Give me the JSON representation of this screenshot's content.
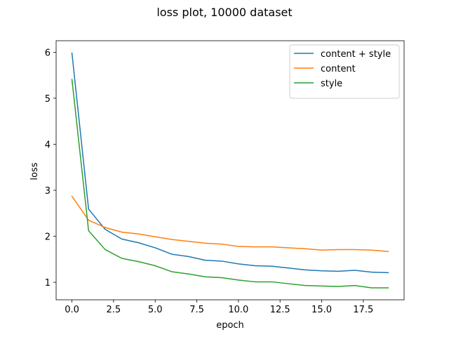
{
  "chart_data": {
    "type": "line",
    "title": "loss plot, 10000 dataset",
    "xlabel": "epoch",
    "ylabel": "loss",
    "xlim": [
      -0.95,
      19.95
    ],
    "ylim": [
      0.62,
      6.25
    ],
    "x_ticks": [
      0,
      2.5,
      5,
      7.5,
      10,
      12.5,
      15,
      17.5
    ],
    "x_tick_labels": [
      "0.0",
      "2.5",
      "5.0",
      "7.5",
      "10.0",
      "12.5",
      "15.0",
      "17.5"
    ],
    "y_ticks": [
      1,
      2,
      3,
      4,
      5,
      6
    ],
    "y_tick_labels": [
      "1",
      "2",
      "3",
      "4",
      "5",
      "6"
    ],
    "grid": false,
    "legend_position": "top-right",
    "x": [
      0,
      1,
      2,
      3,
      4,
      5,
      6,
      7,
      8,
      9,
      10,
      11,
      12,
      13,
      14,
      15,
      16,
      17,
      18,
      19
    ],
    "series": [
      {
        "name": "content + style",
        "color": "#1f77b4",
        "values": [
          5.98,
          2.59,
          2.15,
          1.94,
          1.86,
          1.75,
          1.61,
          1.56,
          1.48,
          1.46,
          1.4,
          1.36,
          1.35,
          1.31,
          1.27,
          1.25,
          1.24,
          1.26,
          1.22,
          1.21
        ]
      },
      {
        "name": "content",
        "color": "#ff7f0e",
        "values": [
          2.87,
          2.35,
          2.19,
          2.09,
          2.05,
          1.99,
          1.93,
          1.89,
          1.85,
          1.83,
          1.78,
          1.77,
          1.77,
          1.75,
          1.73,
          1.7,
          1.71,
          1.71,
          1.7,
          1.67
        ]
      },
      {
        "name": "style",
        "color": "#2ca02c",
        "values": [
          5.41,
          2.12,
          1.71,
          1.52,
          1.45,
          1.36,
          1.23,
          1.18,
          1.12,
          1.1,
          1.05,
          1.01,
          1.01,
          0.97,
          0.93,
          0.92,
          0.91,
          0.93,
          0.88,
          0.88
        ]
      }
    ]
  }
}
